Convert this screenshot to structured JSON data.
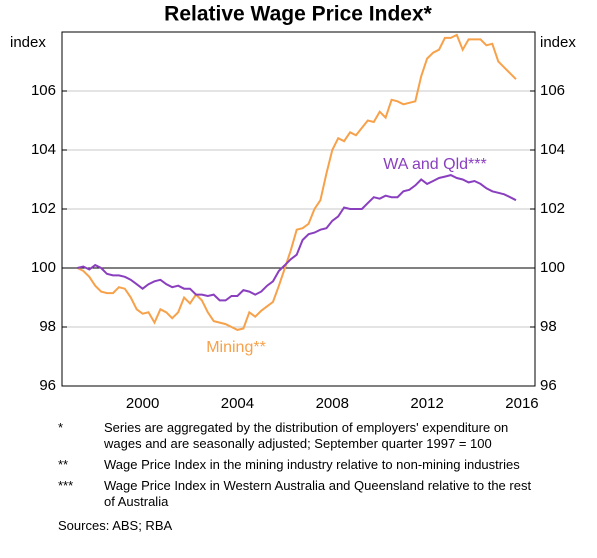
{
  "chart_data": {
    "type": "line",
    "title": "Relative Wage Price Index*",
    "ylabel": "index",
    "xlim": [
      1997.1,
      2017.05
    ],
    "ylim": [
      96,
      108
    ],
    "yticks": [
      96,
      98,
      100,
      102,
      104,
      106
    ],
    "xticks": [
      {
        "value": 2000.5,
        "label": "2000"
      },
      {
        "value": 2004.5,
        "label": "2004"
      },
      {
        "value": 2008.5,
        "label": "2008"
      },
      {
        "value": 2012.5,
        "label": "2012"
      },
      {
        "value": 2016.5,
        "label": "2016"
      }
    ],
    "grid": true,
    "reference_line": 100,
    "x": [
      1997.75,
      1998,
      1998.25,
      1998.5,
      1998.75,
      1999,
      1999.25,
      1999.5,
      1999.75,
      2000,
      2000.25,
      2000.5,
      2000.75,
      2001,
      2001.25,
      2001.5,
      2001.75,
      2002,
      2002.25,
      2002.5,
      2002.75,
      2003,
      2003.25,
      2003.5,
      2003.75,
      2004,
      2004.25,
      2004.5,
      2004.75,
      2005,
      2005.25,
      2005.5,
      2005.75,
      2006,
      2006.25,
      2006.5,
      2006.75,
      2007,
      2007.25,
      2007.5,
      2007.75,
      2008,
      2008.25,
      2008.5,
      2008.75,
      2009,
      2009.25,
      2009.5,
      2009.75,
      2010,
      2010.25,
      2010.5,
      2010.75,
      2011,
      2011.25,
      2011.5,
      2011.75,
      2012,
      2012.25,
      2012.5,
      2012.75,
      2013,
      2013.25,
      2013.5,
      2013.75,
      2014,
      2014.25,
      2014.5,
      2014.75,
      2015,
      2015.25,
      2015.5,
      2015.75,
      2016,
      2016.25
    ],
    "series": [
      {
        "name": "Mining**",
        "color": "#f7a14a",
        "values": [
          100.0,
          99.9,
          99.7,
          99.4,
          99.2,
          99.15,
          99.15,
          99.35,
          99.3,
          99.0,
          98.6,
          98.45,
          98.5,
          98.15,
          98.6,
          98.5,
          98.3,
          98.5,
          99.0,
          98.8,
          99.1,
          98.9,
          98.5,
          98.2,
          98.15,
          98.1,
          98.0,
          97.9,
          97.95,
          98.5,
          98.35,
          98.55,
          98.7,
          98.85,
          99.4,
          100.0,
          100.6,
          101.3,
          101.35,
          101.5,
          102.0,
          102.3,
          103.2,
          104.0,
          104.4,
          104.3,
          104.6,
          104.5,
          104.75,
          105.0,
          104.95,
          105.3,
          105.1,
          105.7,
          105.65,
          105.55,
          105.6,
          105.65,
          106.5,
          107.1,
          107.3,
          107.4,
          107.8,
          107.8,
          107.9,
          107.4,
          107.75,
          107.75,
          107.75,
          107.55,
          107.6,
          107.0,
          106.8,
          106.6,
          106.4
        ]
      },
      {
        "name": "WA and Qld***",
        "color": "#8a3fbf",
        "values": [
          100.0,
          100.05,
          99.95,
          100.1,
          100.0,
          99.8,
          99.75,
          99.75,
          99.7,
          99.6,
          99.45,
          99.3,
          99.45,
          99.55,
          99.6,
          99.45,
          99.35,
          99.4,
          99.3,
          99.3,
          99.1,
          99.1,
          99.05,
          99.1,
          98.9,
          98.9,
          99.05,
          99.05,
          99.25,
          99.2,
          99.1,
          99.2,
          99.4,
          99.55,
          99.9,
          100.1,
          100.3,
          100.45,
          100.95,
          101.15,
          101.2,
          101.3,
          101.35,
          101.6,
          101.75,
          102.05,
          102.0,
          102.0,
          102.0,
          102.2,
          102.4,
          102.35,
          102.45,
          102.4,
          102.4,
          102.6,
          102.65,
          102.8,
          103.0,
          102.85,
          102.95,
          103.05,
          103.1,
          103.15,
          103.05,
          103.0,
          102.9,
          102.95,
          102.85,
          102.7,
          102.6,
          102.55,
          102.5,
          102.4,
          102.3
        ]
      }
    ]
  },
  "notes": [
    {
      "marker": "*",
      "text": "Series are aggregated by the distribution of employers' expenditure on wages and are seasonally adjusted; September quarter 1997 = 100"
    },
    {
      "marker": "**",
      "text": "Wage Price Index in the mining industry relative to non-mining industries"
    },
    {
      "marker": "***",
      "text": "Wage Price Index in Western Australia and Queensland relative to the rest of Australia"
    }
  ],
  "sources": "Sources:   ABS; RBA"
}
